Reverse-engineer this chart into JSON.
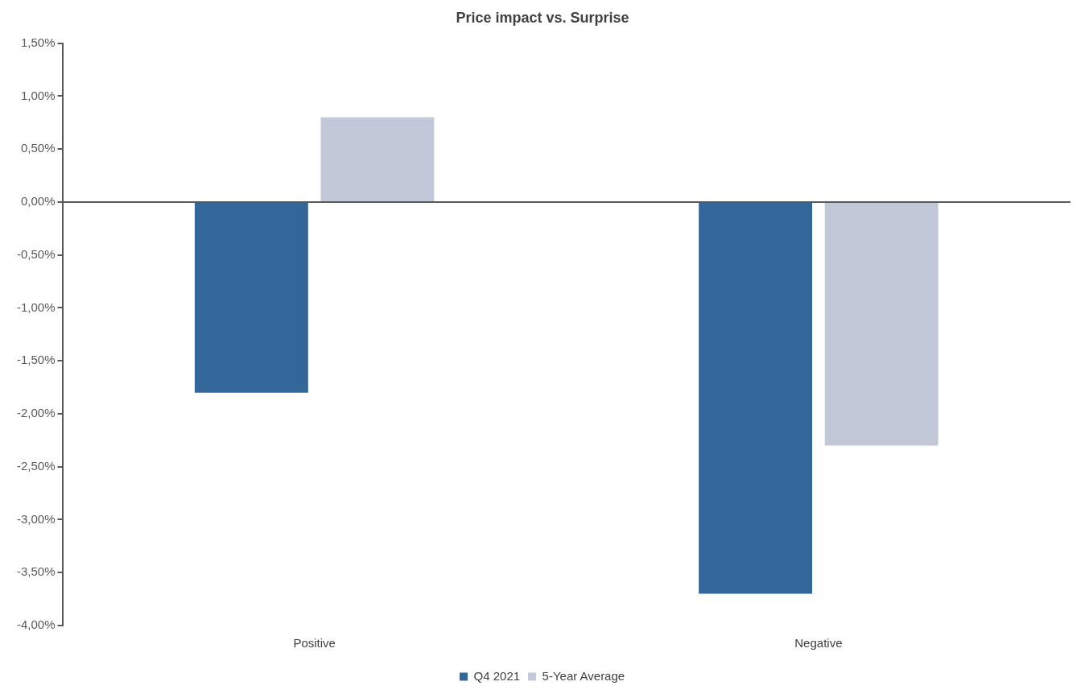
{
  "chart_data": {
    "type": "bar",
    "title": "Price impact vs. Surprise",
    "categories": [
      "Positive",
      "Negative"
    ],
    "series": [
      {
        "name": "Q4 2021",
        "color": "#336699",
        "values": [
          -1.8,
          -3.7
        ]
      },
      {
        "name": "5-Year Average",
        "color": "#c3c8d8",
        "values": [
          0.8,
          -2.3
        ]
      }
    ],
    "ylim": [
      -4,
      1.5
    ],
    "yticks": [
      {
        "value": -4,
        "label": "-4,00%"
      },
      {
        "value": -3.5,
        "label": "-3,50%"
      },
      {
        "value": -3,
        "label": "-3,00%"
      },
      {
        "value": -2.5,
        "label": "-2,50%"
      },
      {
        "value": -2,
        "label": "-2,00%"
      },
      {
        "value": -1.5,
        "label": "-1,50%"
      },
      {
        "value": -1,
        "label": "-1,00%"
      },
      {
        "value": -0.5,
        "label": "-0,50%"
      },
      {
        "value": 0,
        "label": "0,00%"
      },
      {
        "value": 0.5,
        "label": "0,50%"
      },
      {
        "value": 1,
        "label": "1,00%"
      },
      {
        "value": 1.5,
        "label": "1,50%"
      }
    ],
    "ref_lines": [
      {
        "axis": "y",
        "value": 0,
        "color": "#595959"
      }
    ],
    "grid": false,
    "legend": "bottom"
  }
}
